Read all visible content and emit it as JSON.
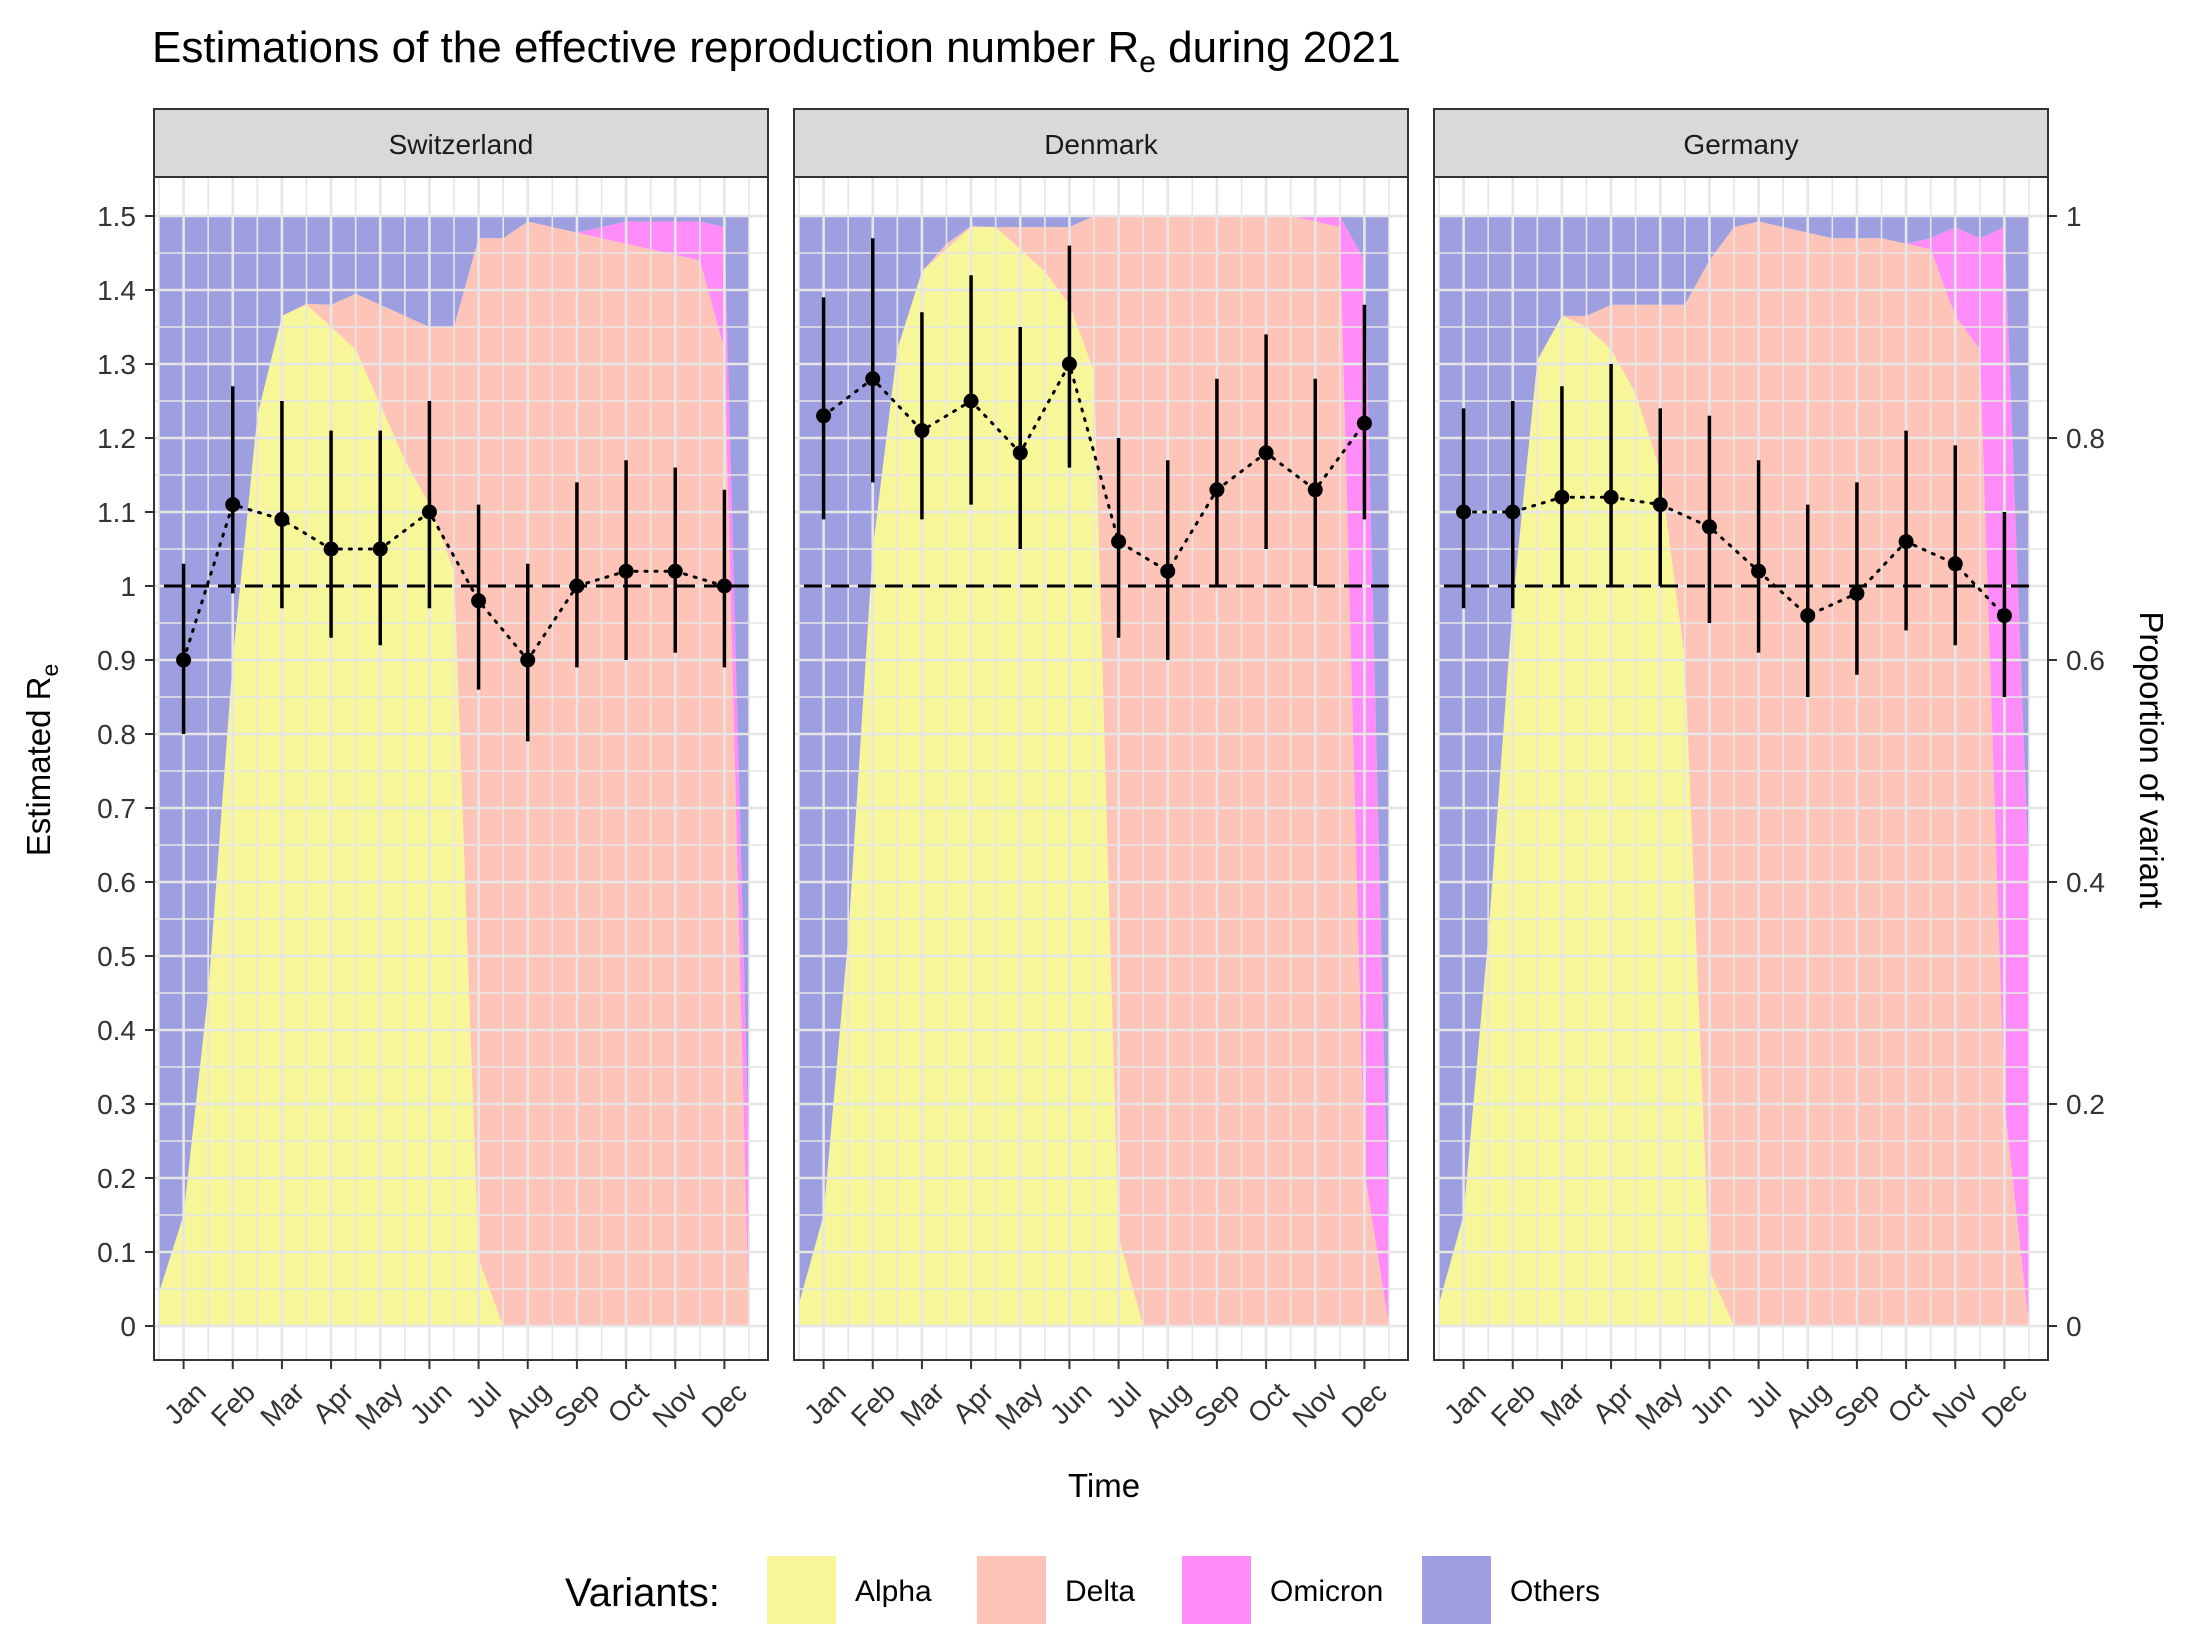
{
  "chart_data": {
    "type": "area+errorbar",
    "title_main": "Estimations of the effective reproduction number R",
    "title_sub": "e",
    "title_tail": " during 2021",
    "xlabel": "Time",
    "ylabel_main": "Estimated R",
    "ylabel_sub": "e",
    "y2label": "Proportion of variant",
    "ylim": [
      0,
      1.5
    ],
    "y2lim": [
      0,
      1
    ],
    "y_ticks": [
      "0",
      "0.1",
      "0.2",
      "0.3",
      "0.4",
      "0.5",
      "0.6",
      "0.7",
      "0.8",
      "0.9",
      "1",
      "1.1",
      "1.2",
      "1.3",
      "1.4",
      "1.5"
    ],
    "y2_ticks": [
      "0",
      "0.2",
      "0.4",
      "0.6",
      "0.8",
      "1"
    ],
    "months": [
      "Jan",
      "Feb",
      "Mar",
      "Apr",
      "May",
      "Jun",
      "Jul",
      "Aug",
      "Sep",
      "Oct",
      "Nov",
      "Dec"
    ],
    "reference_line": 1,
    "legend": {
      "title": "Variants:",
      "position": "bottom",
      "items": [
        {
          "name": "Alpha",
          "color": "#f7f79a"
        },
        {
          "name": "Delta",
          "color": "#ffc4b8"
        },
        {
          "name": "Omicron",
          "color": "#ff8cf8"
        },
        {
          "name": "Others",
          "color": "#9e9fe0"
        }
      ]
    },
    "variant_time": [
      0,
      0.5,
      1,
      1.5,
      2,
      2.5,
      3,
      3.5,
      4,
      4.5,
      5,
      5.5,
      6,
      6.5,
      7,
      7.5,
      8,
      8.5,
      9,
      9.5,
      10,
      10.5,
      11,
      11.5,
      12
    ],
    "panels": [
      {
        "name": "Switzerland",
        "re": [
          0.9,
          1.11,
          1.09,
          1.05,
          1.05,
          1.1,
          0.98,
          0.9,
          1.0,
          1.02,
          1.02,
          1.0
        ],
        "re_low": [
          0.8,
          0.99,
          0.97,
          0.93,
          0.92,
          0.97,
          0.86,
          0.79,
          0.89,
          0.9,
          0.91,
          0.89
        ],
        "re_high": [
          1.03,
          1.27,
          1.25,
          1.21,
          1.21,
          1.25,
          1.11,
          1.03,
          1.14,
          1.17,
          1.16,
          1.13
        ],
        "alpha": [
          0.03,
          0.1,
          0.3,
          0.6,
          0.82,
          0.91,
          0.92,
          0.9,
          0.88,
          0.83,
          0.78,
          0.74,
          0.68,
          0.06,
          0,
          0,
          0,
          0,
          0,
          0,
          0,
          0,
          0,
          0,
          0
        ],
        "delta": [
          0,
          0,
          0,
          0,
          0,
          0,
          0.001,
          0.02,
          0.05,
          0.09,
          0.13,
          0.16,
          0.22,
          0.92,
          0.98,
          0.995,
          0.99,
          0.985,
          0.98,
          0.975,
          0.97,
          0.965,
          0.96,
          0.88,
          0.0
        ],
        "omicron": [
          0,
          0,
          0,
          0,
          0,
          0,
          0,
          0,
          0,
          0,
          0,
          0,
          0,
          0,
          0,
          0,
          0,
          0,
          0.01,
          0.02,
          0.025,
          0.03,
          0.035,
          0.11,
          0.15
        ],
        "others": [
          0.97,
          0.9,
          0.7,
          0.4,
          0.18,
          0.09,
          0.079,
          0.08,
          0.07,
          0.08,
          0.09,
          0.1,
          0.1,
          0.02,
          0.02,
          0.005,
          0.01,
          0.015,
          0.01,
          0.005,
          0.005,
          0.005,
          0.005,
          0.01,
          0.85
        ]
      },
      {
        "name": "Denmark",
        "re": [
          1.23,
          1.28,
          1.21,
          1.25,
          1.18,
          1.3,
          1.06,
          1.02,
          1.13,
          1.18,
          1.13,
          1.22
        ],
        "re_low": [
          1.09,
          1.14,
          1.09,
          1.11,
          1.05,
          1.16,
          0.93,
          0.9,
          1.0,
          1.05,
          1.0,
          1.09
        ],
        "re_high": [
          1.39,
          1.47,
          1.37,
          1.42,
          1.35,
          1.46,
          1.2,
          1.17,
          1.28,
          1.34,
          1.28,
          1.38
        ],
        "alpha": [
          0.02,
          0.1,
          0.35,
          0.7,
          0.88,
          0.95,
          0.97,
          0.99,
          0.99,
          0.97,
          0.95,
          0.92,
          0.86,
          0.08,
          0,
          0,
          0,
          0,
          0,
          0,
          0,
          0,
          0,
          0,
          0
        ],
        "delta": [
          0,
          0,
          0,
          0,
          0,
          0,
          0.005,
          0.001,
          0.0,
          0.02,
          0.04,
          0.07,
          0.14,
          0.92,
          1.0,
          1.0,
          1.0,
          1.0,
          1.0,
          1.0,
          1.0,
          0.995,
          0.99,
          0.14,
          0.0
        ],
        "omicron": [
          0,
          0,
          0,
          0,
          0,
          0,
          0,
          0,
          0,
          0,
          0,
          0,
          0,
          0,
          0,
          0,
          0,
          0,
          0,
          0,
          0,
          0.005,
          0.01,
          0.82,
          0.06
        ],
        "others": [
          0.98,
          0.9,
          0.65,
          0.3,
          0.12,
          0.05,
          0.025,
          0.009,
          0.01,
          0.01,
          0.01,
          0.01,
          0.0,
          0.0,
          0.0,
          0.0,
          0.0,
          0.0,
          0.0,
          0.0,
          0.0,
          0.0,
          0.0,
          0.04,
          0.94
        ]
      },
      {
        "name": "Germany",
        "re": [
          1.1,
          1.1,
          1.12,
          1.12,
          1.11,
          1.08,
          1.02,
          0.96,
          0.99,
          1.06,
          1.03,
          0.96
        ],
        "re_low": [
          0.97,
          0.97,
          1.0,
          1.0,
          1.0,
          0.95,
          0.91,
          0.85,
          0.88,
          0.94,
          0.92,
          0.85
        ],
        "re_high": [
          1.24,
          1.25,
          1.27,
          1.3,
          1.24,
          1.23,
          1.17,
          1.11,
          1.14,
          1.21,
          1.19,
          1.1
        ],
        "alpha": [
          0.02,
          0.1,
          0.35,
          0.65,
          0.87,
          0.91,
          0.9,
          0.88,
          0.84,
          0.77,
          0.6,
          0.05,
          0.0,
          0,
          0,
          0,
          0,
          0,
          0,
          0,
          0,
          0,
          0,
          0,
          0
        ],
        "delta": [
          0,
          0,
          0,
          0,
          0,
          0,
          0.01,
          0.04,
          0.08,
          0.15,
          0.32,
          0.91,
          0.99,
          0.995,
          0.99,
          0.985,
          0.98,
          0.98,
          0.98,
          0.975,
          0.97,
          0.91,
          0.88,
          0.2,
          0.0
        ],
        "omicron": [
          0,
          0,
          0,
          0,
          0,
          0,
          0,
          0,
          0,
          0,
          0,
          0,
          0,
          0,
          0,
          0,
          0,
          0,
          0,
          0,
          0.01,
          0.08,
          0.1,
          0.79,
          0.4
        ],
        "others": [
          0.98,
          0.9,
          0.65,
          0.35,
          0.13,
          0.09,
          0.09,
          0.08,
          0.08,
          0.08,
          0.08,
          0.04,
          0.01,
          0.005,
          0.01,
          0.015,
          0.02,
          0.02,
          0.02,
          0.025,
          0.02,
          0.01,
          0.02,
          0.01,
          0.6
        ]
      }
    ]
  }
}
